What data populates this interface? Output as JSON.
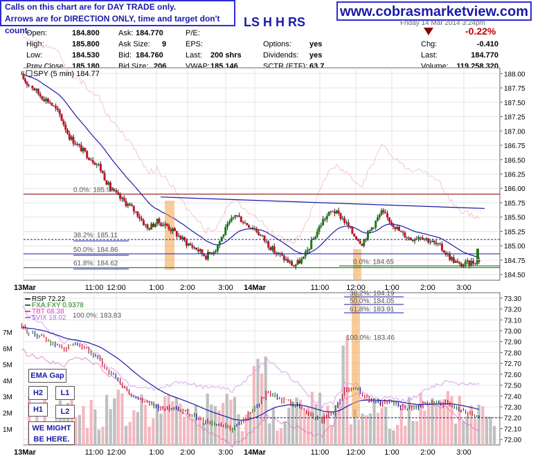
{
  "notice": {
    "line1": "Calls on this chart are for DAY TRADE only.",
    "line2": "Arrows are for DIRECTION ONLY, time and target don't count."
  },
  "site": "www.cobrasmarketview.com",
  "ticker_title": "LS H H RS",
  "date_text": "Friday 14 Mar 2014 3:24pm",
  "quote": {
    "open_label": "Open:",
    "open": "184.800",
    "high_label": "High:",
    "high": "185.800",
    "low_label": "Low:",
    "low": "184.530",
    "prev_label": "Prev Close:",
    "prev": "185.180",
    "ask_label": "Ask:",
    "ask": "184.770",
    "asksize_label": "Ask Size:",
    "asksize": "9",
    "bid_label": "Bid:",
    "bid": "184.760",
    "bidsize_label": "Bid Size:",
    "bidsize": "206",
    "pe_label": "P/E:",
    "eps_label": "EPS:",
    "last_label": "Last:",
    "last_shrs": "200 shrs",
    "vwap_label": "VWAP:",
    "vwap": "185.146",
    "options_label": "Options:",
    "options": "yes",
    "div_label": "Dividends:",
    "div": "yes",
    "sctr_label": "SCTR (ETF):",
    "sctr": "63.7",
    "pct_change": "-0.22%",
    "chg_label": "Chg:",
    "chg": "-0.410",
    "last2_label": "Last:",
    "last2": "184.770",
    "vol_label": "Volume:",
    "vol": "119,258,320"
  },
  "colors": {
    "brand_blue": "#1a1aa8",
    "down": "#c8102e",
    "up": "#1a7a1a",
    "ema": "#1a1aa8",
    "fib": "#006400"
  },
  "chart_data": [
    {
      "type": "candlestick",
      "title": "SPY (5 min) 184.77",
      "x_tick_labels": [
        "13Mar",
        "11:00",
        "12:00",
        "1:00",
        "2:00",
        "3:00",
        "14Mar",
        "11:00",
        "12:00",
        "1:00",
        "2:00",
        "3:00"
      ],
      "y_tick_labels": [
        "188.00",
        "187.75",
        "187.50",
        "187.25",
        "187.00",
        "186.75",
        "186.50",
        "186.25",
        "186.00",
        "185.75",
        "185.50",
        "185.25",
        "185.00",
        "184.75",
        "184.50"
      ],
      "ylim": [
        184.4,
        188.1
      ],
      "close": [
        187.8,
        187.62,
        187.5,
        187.28,
        186.9,
        186.72,
        186.55,
        186.4,
        186.05,
        185.85,
        185.72,
        185.55,
        185.3,
        185.42,
        185.35,
        185.2,
        185.05,
        184.95,
        184.82,
        184.95,
        185.28,
        185.55,
        185.4,
        185.3,
        185.1,
        184.9,
        184.78,
        184.65,
        184.78,
        185.12,
        185.45,
        185.62,
        185.48,
        185.22,
        185.05,
        185.32,
        185.58,
        185.42,
        185.22,
        185.12,
        185.18,
        185.08,
        184.98,
        184.8,
        184.66,
        184.7,
        184.75
      ],
      "annotations": [
        {
          "text": "0.0%: 185.90",
          "price": 185.9
        },
        {
          "text": "38.2%: 185.11",
          "price": 185.11
        },
        {
          "text": "50.0%: 184.86",
          "price": 184.86
        },
        {
          "text": "61.8%: 184.62",
          "price": 184.62
        },
        {
          "text": "0.0%: 184.65",
          "price": 184.65
        }
      ]
    },
    {
      "type": "line",
      "title": "RSP 72.22",
      "legend": [
        "FXA:FXY 0.9378",
        "TBT 68.38",
        "$VIX 18.02"
      ],
      "x_tick_labels": [
        "13Mar",
        "11:00",
        "12:00",
        "1:00",
        "2:00",
        "3:00",
        "14Mar",
        "11:00",
        "12:00",
        "1:00",
        "2:00",
        "3:00"
      ],
      "y_tick_labels": [
        "73.30",
        "73.20",
        "73.10",
        "73.00",
        "72.90",
        "72.80",
        "72.70",
        "72.60",
        "72.50",
        "72.40",
        "72.30",
        "72.20",
        "72.10",
        "72.00"
      ],
      "volume_tick_labels": [
        "7M",
        "6M",
        "5M",
        "4M",
        "3M",
        "2M",
        "1M"
      ],
      "ylim": [
        71.95,
        73.35
      ],
      "close": [
        72.98,
        72.95,
        72.88,
        72.84,
        72.86,
        72.82,
        72.74,
        72.62,
        72.52,
        72.4,
        72.35,
        72.3,
        72.28,
        72.3,
        72.25,
        72.18,
        72.16,
        72.12,
        72.1,
        72.18,
        72.3,
        72.42,
        72.38,
        72.35,
        72.3,
        72.22,
        72.18,
        72.25,
        72.45,
        72.46,
        72.38,
        72.33,
        72.36,
        72.3,
        72.29,
        72.32,
        72.34,
        72.33,
        72.28,
        72.25,
        72.22
      ],
      "annotations": [
        {
          "text": "100.0%: 183.83",
          "price": 183.83
        },
        {
          "text": "38.2%: 184.19",
          "price": 184.19
        },
        {
          "text": "50.0%: 184.05",
          "price": 184.05
        },
        {
          "text": "61.8%: 183.91",
          "price": 183.91
        },
        {
          "text": "100.0%: 183.46",
          "price": 183.46
        }
      ]
    }
  ],
  "buttons": {
    "ema_gap": "EMA Gap",
    "h2": "H2",
    "l1": "L1",
    "h1": "H1",
    "l2": "L2",
    "note": "WE MIGHT BE HERE."
  }
}
